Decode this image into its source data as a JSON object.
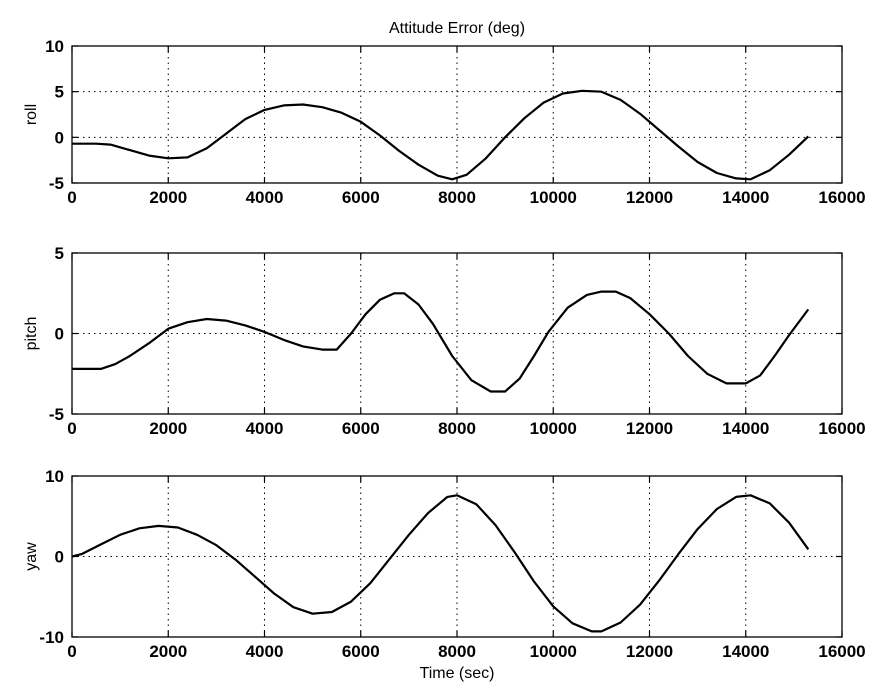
{
  "chart_data": [
    {
      "type": "line",
      "title": "Attitude Error (deg)",
      "ylabel": "roll",
      "xlabel": "",
      "xlim": [
        0,
        16000
      ],
      "ylim": [
        -5,
        10
      ],
      "xticks": [
        "0",
        "2000",
        "4000",
        "6000",
        "8000",
        "10000",
        "12000",
        "14000",
        "16000"
      ],
      "yticks": [
        "10",
        "5",
        "0",
        "-5"
      ],
      "grid": true,
      "x": [
        0,
        500,
        800,
        1200,
        1600,
        2000,
        2400,
        2800,
        3200,
        3600,
        4000,
        4400,
        4800,
        5200,
        5600,
        6000,
        6400,
        6800,
        7200,
        7600,
        7900,
        8200,
        8600,
        9000,
        9400,
        9800,
        10200,
        10600,
        11000,
        11400,
        11800,
        12200,
        12600,
        13000,
        13400,
        13800,
        14100,
        14500,
        14900,
        15300
      ],
      "y": [
        -0.7,
        -0.7,
        -0.8,
        -1.4,
        -2.0,
        -2.3,
        -2.2,
        -1.2,
        0.4,
        2.0,
        3.0,
        3.5,
        3.6,
        3.3,
        2.7,
        1.7,
        0.2,
        -1.5,
        -3.0,
        -4.2,
        -4.6,
        -4.1,
        -2.3,
        0.0,
        2.1,
        3.8,
        4.8,
        5.1,
        5.0,
        4.1,
        2.6,
        0.8,
        -1.0,
        -2.7,
        -3.9,
        -4.5,
        -4.6,
        -3.6,
        -1.9,
        0.1
      ]
    },
    {
      "type": "line",
      "title": "",
      "ylabel": "pitch",
      "xlabel": "",
      "xlim": [
        0,
        16000
      ],
      "ylim": [
        -5,
        5
      ],
      "xticks": [
        "0",
        "2000",
        "4000",
        "6000",
        "8000",
        "10000",
        "12000",
        "14000",
        "16000"
      ],
      "yticks": [
        "5",
        "0",
        "-5"
      ],
      "grid": true,
      "x": [
        0,
        300,
        600,
        900,
        1200,
        1600,
        2000,
        2400,
        2800,
        3200,
        3600,
        4000,
        4400,
        4800,
        5200,
        5500,
        5800,
        6100,
        6400,
        6700,
        6900,
        7200,
        7500,
        7900,
        8300,
        8700,
        9000,
        9300,
        9600,
        9900,
        10300,
        10700,
        11000,
        11300,
        11600,
        12000,
        12400,
        12800,
        13200,
        13600,
        14000,
        14300,
        14600,
        14900,
        15300
      ],
      "y": [
        -2.2,
        -2.2,
        -2.2,
        -1.9,
        -1.4,
        -0.6,
        0.3,
        0.7,
        0.9,
        0.8,
        0.5,
        0.1,
        -0.4,
        -0.8,
        -1.0,
        -1.0,
        0.0,
        1.2,
        2.1,
        2.5,
        2.5,
        1.8,
        0.6,
        -1.4,
        -2.9,
        -3.6,
        -3.6,
        -2.8,
        -1.4,
        0.1,
        1.6,
        2.4,
        2.6,
        2.6,
        2.2,
        1.2,
        0.0,
        -1.4,
        -2.5,
        -3.1,
        -3.1,
        -2.6,
        -1.4,
        -0.1,
        1.5
      ]
    },
    {
      "type": "line",
      "title": "",
      "ylabel": "yaw",
      "xlabel": "Time (sec)",
      "xlim": [
        0,
        16000
      ],
      "ylim": [
        -10,
        10
      ],
      "xticks": [
        "0",
        "2000",
        "4000",
        "6000",
        "8000",
        "10000",
        "12000",
        "14000",
        "16000"
      ],
      "yticks": [
        "10",
        "0",
        "-10"
      ],
      "grid": true,
      "x": [
        0,
        200,
        600,
        1000,
        1400,
        1800,
        2200,
        2600,
        3000,
        3400,
        3800,
        4200,
        4600,
        5000,
        5400,
        5800,
        6200,
        6600,
        7000,
        7400,
        7800,
        8000,
        8400,
        8800,
        9200,
        9600,
        10000,
        10400,
        10800,
        11000,
        11400,
        11800,
        12200,
        12600,
        13000,
        13400,
        13800,
        14100,
        14500,
        14900,
        15300
      ],
      "y": [
        0.0,
        0.3,
        1.5,
        2.7,
        3.5,
        3.8,
        3.6,
        2.7,
        1.4,
        -0.4,
        -2.5,
        -4.6,
        -6.3,
        -7.1,
        -6.9,
        -5.6,
        -3.3,
        -0.3,
        2.7,
        5.4,
        7.4,
        7.6,
        6.5,
        3.9,
        0.5,
        -3.1,
        -6.2,
        -8.3,
        -9.3,
        -9.3,
        -8.2,
        -6.0,
        -3.0,
        0.3,
        3.4,
        5.9,
        7.4,
        7.6,
        6.6,
        4.2,
        0.9
      ]
    }
  ]
}
